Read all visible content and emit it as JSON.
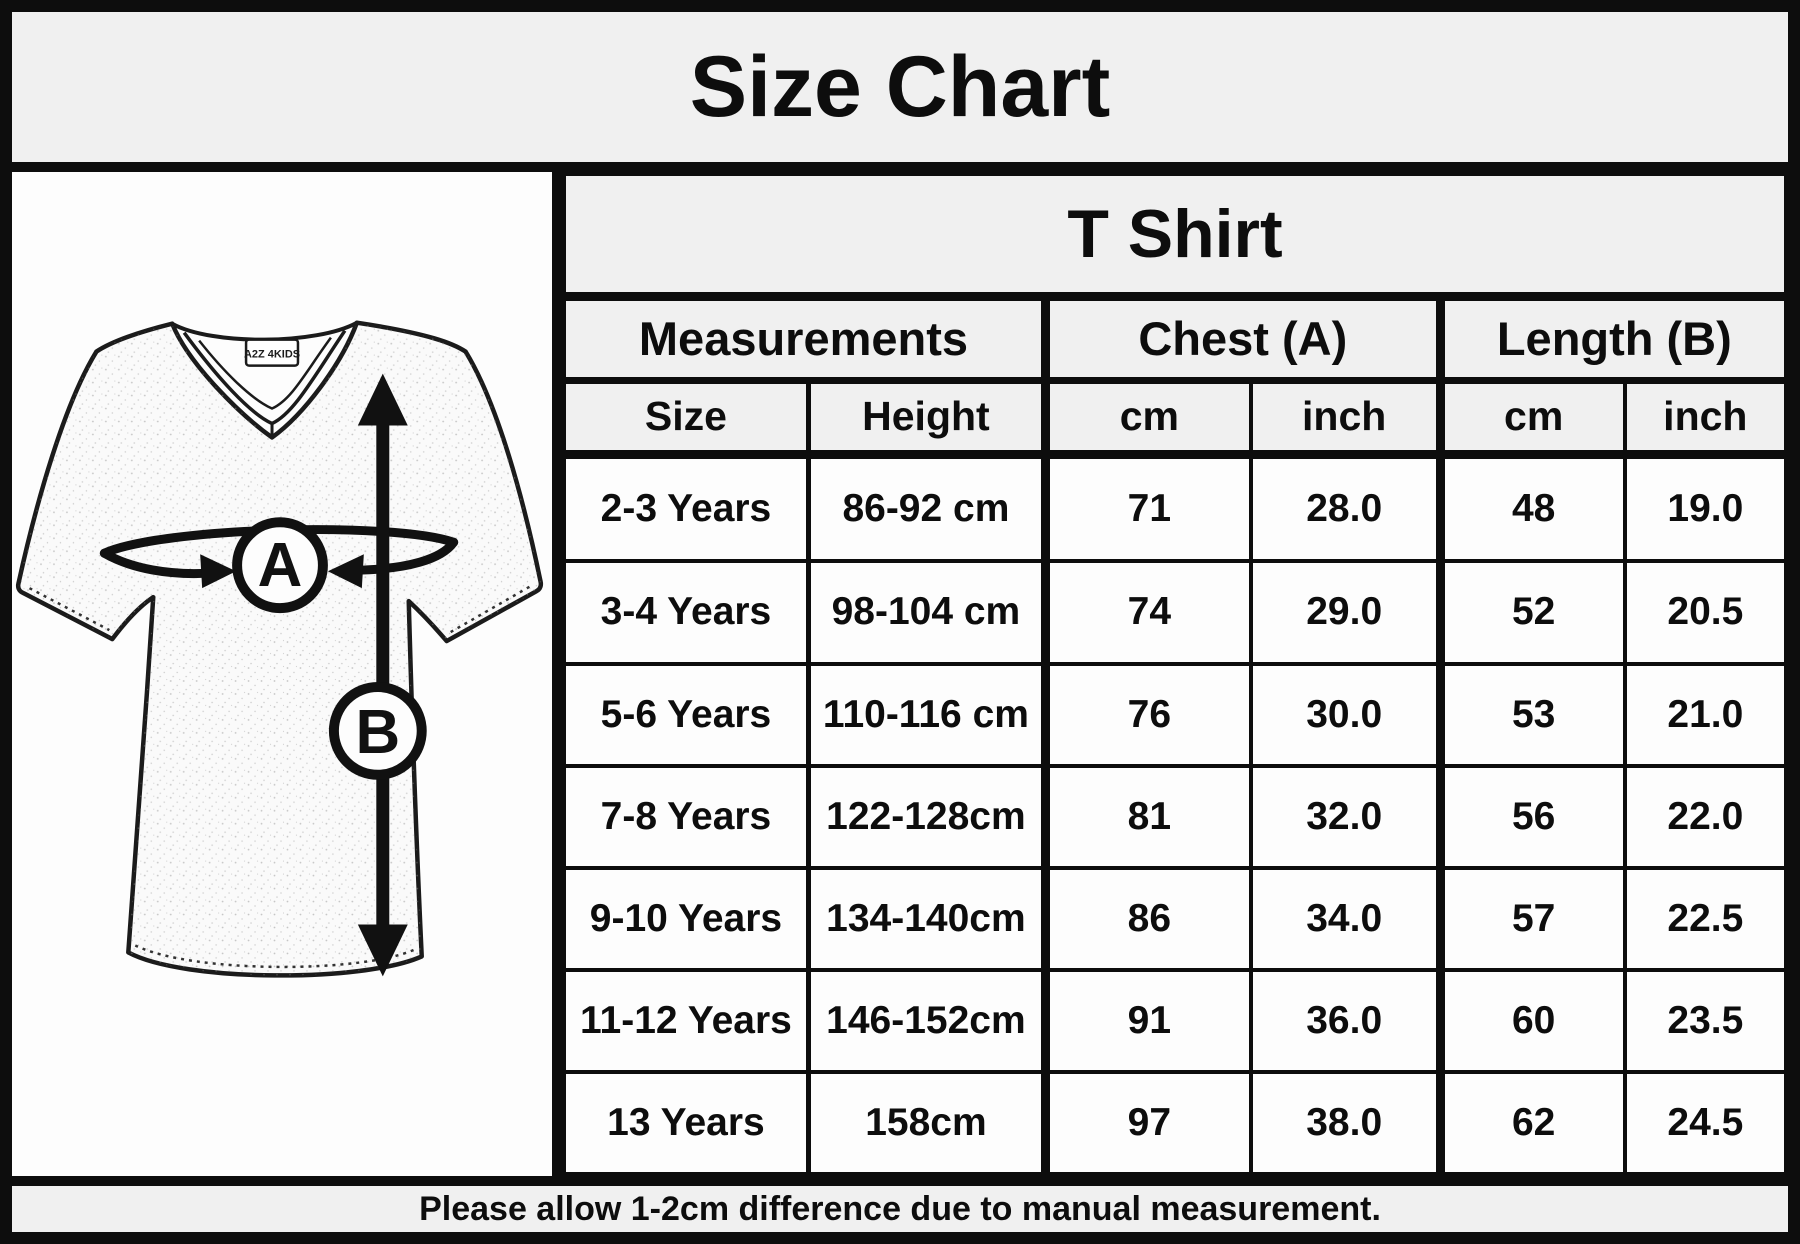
{
  "title": "Size Chart",
  "table": {
    "product_header": "T Shirt",
    "section_headers": {
      "measurements": "Measurements",
      "chest": "Chest (A)",
      "length": "Length (B)"
    },
    "sub_headers": {
      "size": "Size",
      "height": "Height",
      "chest_cm": "cm",
      "chest_inch": "inch",
      "length_cm": "cm",
      "length_inch": "inch"
    },
    "rows": [
      {
        "size": "2-3 Years",
        "height": "86-92 cm",
        "chest_cm": "71",
        "chest_inch": "28.0",
        "length_cm": "48",
        "length_inch": "19.0"
      },
      {
        "size": "3-4 Years",
        "height": "98-104 cm",
        "chest_cm": "74",
        "chest_inch": "29.0",
        "length_cm": "52",
        "length_inch": "20.5"
      },
      {
        "size": "5-6 Years",
        "height": "110-116 cm",
        "chest_cm": "76",
        "chest_inch": "30.0",
        "length_cm": "53",
        "length_inch": "21.0"
      },
      {
        "size": "7-8 Years",
        "height": "122-128cm",
        "chest_cm": "81",
        "chest_inch": "32.0",
        "length_cm": "56",
        "length_inch": "22.0"
      },
      {
        "size": "9-10 Years",
        "height": "134-140cm",
        "chest_cm": "86",
        "chest_inch": "34.0",
        "length_cm": "57",
        "length_inch": "22.5"
      },
      {
        "size": "11-12 Years",
        "height": "146-152cm",
        "chest_cm": "91",
        "chest_inch": "36.0",
        "length_cm": "60",
        "length_inch": "23.5"
      },
      {
        "size": "13 Years",
        "height": "158cm",
        "chest_cm": "97",
        "chest_inch": "38.0",
        "length_cm": "62",
        "length_inch": "24.5"
      }
    ]
  },
  "diagram": {
    "chest_label": "A",
    "length_label": "B",
    "collar_brand": "A2Z 4KIDS"
  },
  "footer": {
    "note": "Please allow 1-2cm difference due to manual measurement."
  },
  "colors": {
    "header_bg": "#f0f0f0",
    "cell_bg": "#fdfdfd",
    "border": "#0d0d0d",
    "ink": "#111111"
  },
  "chart_data": {
    "type": "table",
    "title": "Size Chart",
    "product": "T Shirt",
    "columns": [
      "Size",
      "Height",
      "Chest (A) cm",
      "Chest (A) inch",
      "Length (B) cm",
      "Length (B) inch"
    ],
    "rows": [
      [
        "2-3 Years",
        "86-92 cm",
        71,
        28.0,
        48,
        19.0
      ],
      [
        "3-4 Years",
        "98-104 cm",
        74,
        29.0,
        52,
        20.5
      ],
      [
        "5-6 Years",
        "110-116 cm",
        76,
        30.0,
        53,
        21.0
      ],
      [
        "7-8 Years",
        "122-128cm",
        81,
        32.0,
        56,
        22.0
      ],
      [
        "9-10 Years",
        "134-140cm",
        86,
        34.0,
        57,
        22.5
      ],
      [
        "11-12 Years",
        "146-152cm",
        91,
        36.0,
        60,
        23.5
      ],
      [
        "13 Years",
        "158cm",
        97,
        38.0,
        62,
        24.5
      ]
    ],
    "note": "Please allow 1-2cm difference due to manual measurement."
  }
}
